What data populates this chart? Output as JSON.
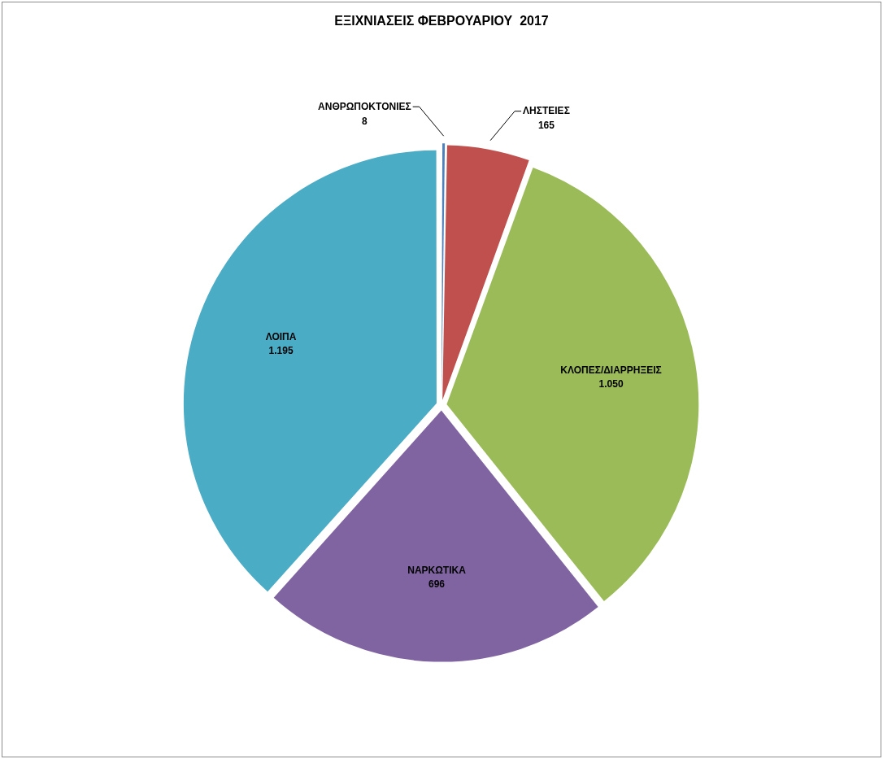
{
  "chart_data": {
    "type": "pie",
    "title": "ΕΞΙΧΝΙΑΣΕΙΣ ΦΕΒΡΟΥΑΡΙΟΥ  2017",
    "categories": [
      "ΑΝΘΡΩΠΟΚΤΟΝΙΕΣ",
      "ΛΗΣΤΕΙΕΣ",
      "ΚΛΟΠΕΣ/ΔΙΑΡΡΗΞΕΙΣ",
      "ΝΑΡΚΩΤΙΚΑ",
      "ΛΟΙΠΑ"
    ],
    "values": [
      8,
      165,
      1050,
      696,
      1195
    ],
    "colors": [
      "#4f81bd",
      "#c0504d",
      "#9bbb59",
      "#8064a2",
      "#4bacc6"
    ],
    "value_labels": [
      "8",
      "165",
      "1.050",
      "696",
      "1.195"
    ],
    "legend": false
  }
}
